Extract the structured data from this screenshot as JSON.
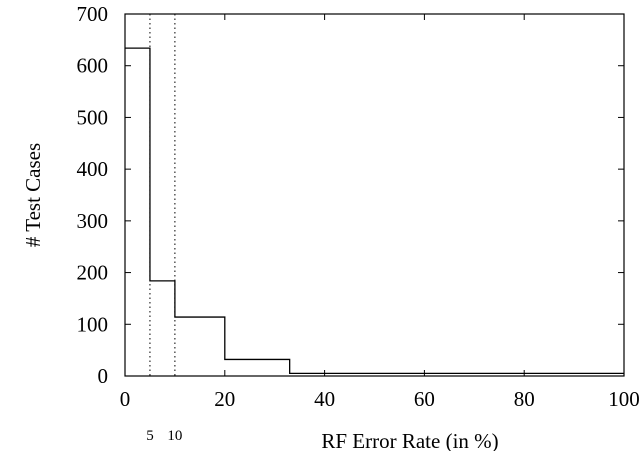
{
  "chart_data": {
    "type": "line",
    "step": true,
    "xlabel": "RF Error Rate (in %)",
    "ylabel": "# Test Cases",
    "xlim": [
      0,
      100
    ],
    "ylim": [
      0,
      700
    ],
    "xticks": [
      0,
      20,
      40,
      60,
      80,
      100
    ],
    "yticks": [
      0,
      100,
      200,
      300,
      400,
      500,
      600,
      700
    ],
    "grid": false,
    "legend": "none",
    "series": [
      {
        "x": [
          0,
          5,
          5,
          10,
          10,
          20,
          20,
          33,
          33,
          100
        ],
        "y": [
          634,
          634,
          184,
          184,
          114,
          114,
          32,
          32,
          5,
          5
        ]
      }
    ],
    "reference_lines": [
      {
        "x": 5,
        "label": "5",
        "style": "dotted"
      },
      {
        "x": 10,
        "label": "10",
        "style": "dotted"
      }
    ],
    "line_color": "#000000"
  }
}
